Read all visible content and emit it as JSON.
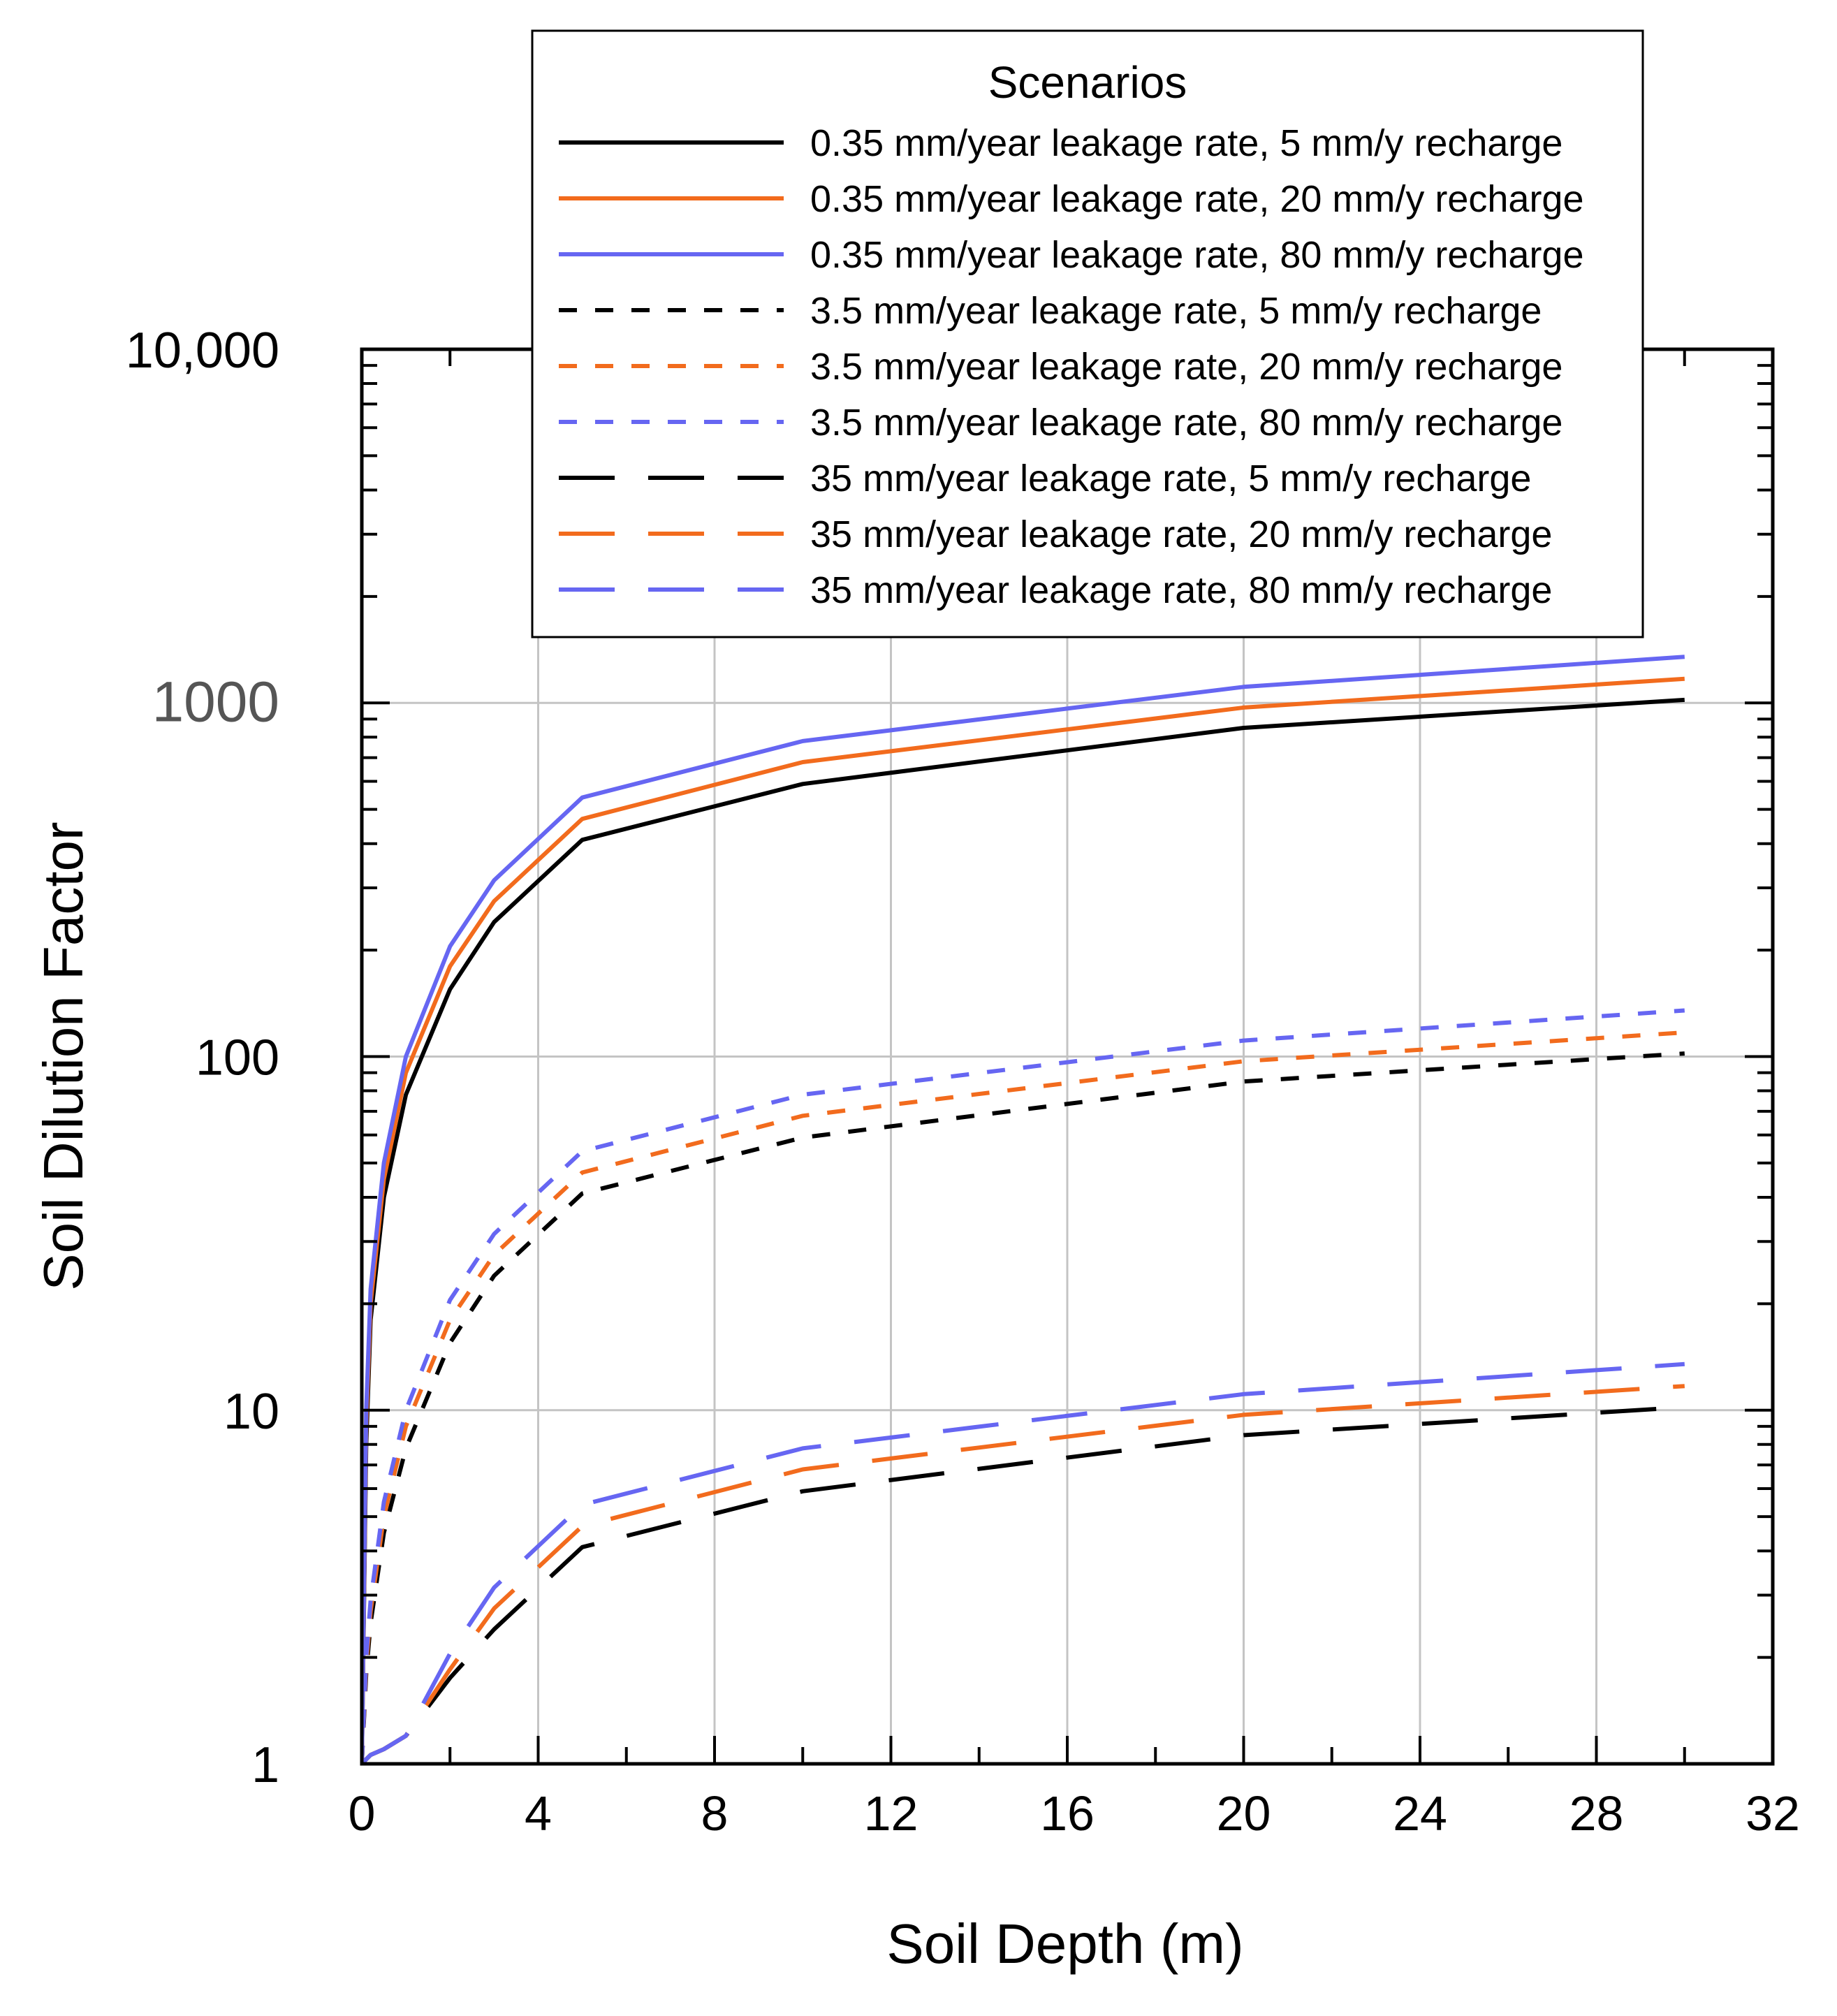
{
  "chart_data": {
    "type": "line",
    "title": "",
    "xlabel": "Soil Depth (m)",
    "ylabel": "Soil Dilution Factor",
    "xlim": [
      0,
      32
    ],
    "ylim": [
      1,
      10000
    ],
    "yscale": "log",
    "grid": true,
    "x_ticks": [
      0,
      4,
      8,
      12,
      16,
      20,
      24,
      28,
      32
    ],
    "x_tick_labels": [
      "0",
      "4",
      "8",
      "12",
      "16",
      "20",
      "24",
      "28",
      "32"
    ],
    "y_ticks": [
      1,
      10,
      100,
      1000,
      10000
    ],
    "y_tick_labels": [
      "1",
      "10",
      "100",
      "1000",
      "10,000"
    ],
    "legend": {
      "title": "Scenarios",
      "position": "top-center",
      "labels": [
        "0.35 mm/year leakage rate, 5 mm/y recharge",
        "0.35 mm/year leakage rate, 20 mm/y recharge",
        "0.35 mm/year leakage rate, 80 mm/y recharge",
        "3.5 mm/year leakage rate, 5 mm/y recharge",
        "3.5 mm/year leakage rate, 20 mm/y recharge",
        "3.5 mm/year leakage rate, 80 mm/y recharge",
        "35 mm/year leakage rate, 5 mm/y recharge",
        "35 mm/year leakage rate, 20 mm/y recharge",
        "35 mm/year leakage rate, 80 mm/y recharge"
      ]
    },
    "x": [
      0,
      0.1,
      0.2,
      0.5,
      1,
      2,
      3,
      5,
      10,
      20,
      30
    ],
    "series": [
      {
        "name": "0.35 mm/year leakage rate, 5 mm/y recharge",
        "color": "#000000",
        "dash": "solid",
        "values": [
          1,
          8,
          18,
          40,
          78,
          155,
          240,
          410,
          590,
          850,
          1020
        ]
      },
      {
        "name": "0.35 mm/year leakage rate, 20 mm/y recharge",
        "color": "#f26b1d",
        "dash": "solid",
        "values": [
          1,
          9,
          20,
          45,
          90,
          180,
          275,
          470,
          680,
          970,
          1170
        ]
      },
      {
        "name": "0.35 mm/year leakage rate, 80 mm/y recharge",
        "color": "#6666f2",
        "dash": "solid",
        "values": [
          1,
          10,
          22,
          50,
          100,
          205,
          315,
          540,
          780,
          1110,
          1350
        ]
      },
      {
        "name": "3.5 mm/year leakage rate, 5 mm/y recharge",
        "color": "#000000",
        "dash": "dotted",
        "values": [
          1,
          1.8,
          2.5,
          4.5,
          7.8,
          15.5,
          24,
          41,
          59,
          85,
          102
        ]
      },
      {
        "name": "3.5 mm/year leakage rate, 20 mm/y recharge",
        "color": "#f26b1d",
        "dash": "dotted",
        "values": [
          1,
          1.9,
          2.7,
          5,
          9,
          18,
          27.5,
          47,
          68,
          97,
          117
        ]
      },
      {
        "name": "3.5 mm/year leakage rate, 80 mm/y recharge",
        "color": "#6666f2",
        "dash": "dotted",
        "values": [
          1,
          2,
          2.9,
          5.5,
          10,
          20.5,
          31.5,
          54,
          78,
          111,
          135
        ]
      },
      {
        "name": "35 mm/year leakage rate, 5 mm/y recharge",
        "color": "#000000",
        "dash": "dashed",
        "values": [
          1,
          1.03,
          1.06,
          1.1,
          1.2,
          1.75,
          2.4,
          4.1,
          5.9,
          8.5,
          10.2
        ]
      },
      {
        "name": "35 mm/year leakage rate, 20 mm/y recharge",
        "color": "#f26b1d",
        "dash": "dashed",
        "values": [
          1,
          1.03,
          1.06,
          1.1,
          1.2,
          1.85,
          2.75,
          4.7,
          6.8,
          9.7,
          11.7
        ]
      },
      {
        "name": "35 mm/year leakage rate, 80 mm/y recharge",
        "color": "#6666f2",
        "dash": "dashed",
        "values": [
          1,
          1.03,
          1.06,
          1.1,
          1.2,
          2.05,
          3.15,
          5.4,
          7.8,
          11.1,
          13.5
        ]
      }
    ]
  }
}
